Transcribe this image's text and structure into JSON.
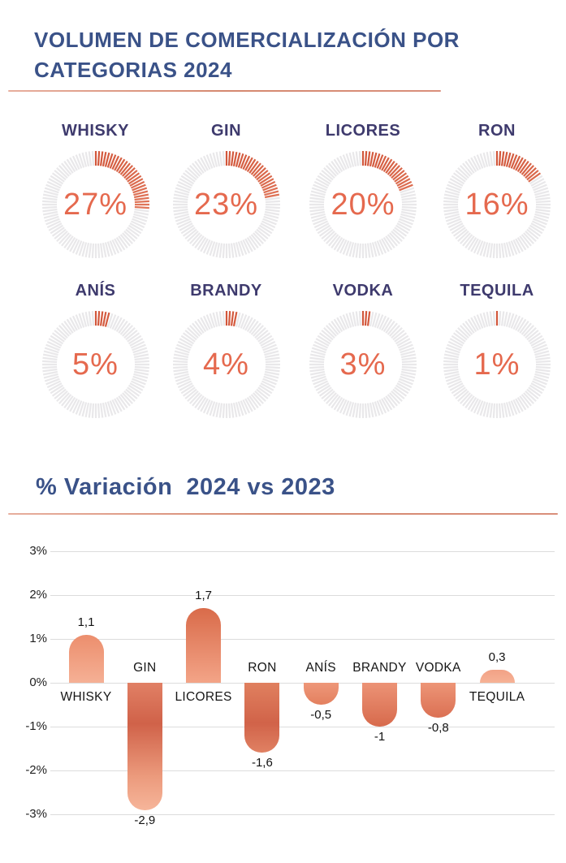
{
  "header": {
    "title": "VOLUMEN DE COMERCIALIZACIÓN POR CATEGORIAS 2024"
  },
  "variation_section": {
    "title": "% Variación  2024 vs 2023"
  },
  "colors": {
    "title_blue": "#3A5288",
    "gauge_label_indigo": "#3E3A6D",
    "gauge_value_coral": "#E5694E",
    "divider_coral": "#D5886F",
    "gauge_tick_empty": "#E9E8EA",
    "gauge_gradient_stops": [
      {
        "angle": 0,
        "color": "#D2573B"
      },
      {
        "angle": 55,
        "color": "#F09B7E"
      },
      {
        "angle": 80,
        "color": "#C84732"
      },
      {
        "angle": 100,
        "color": "#D05A3E"
      }
    ],
    "gridline": "#DCDCDC",
    "bar_gradients": [
      "linear-gradient(0deg,#F5B095 0%,#EC8E6D 100%)",
      "linear-gradient(180deg,#E18065 0%,#D06249 32%,#EC9B7D 74%,#F6B59A 100%)",
      "linear-gradient(0deg,#F3A487 0%,#D96B4A 100%)",
      "linear-gradient(180deg,#E0805F 0%,#D16349 58%,#E08163 100%)",
      "linear-gradient(180deg,#EE9779 0%,#E3805F 100%)",
      "linear-gradient(180deg,#EC9376 0%,#D76A4C 100%)",
      "linear-gradient(180deg,#ED9577 0%,#DB7053 100%)",
      "linear-gradient(0deg,#F6B295 0%,#F2A185 100%)"
    ]
  },
  "chart_data": [
    {
      "type": "pie",
      "subtype": "tick-donut-gauges",
      "title": "VOLUMEN DE COMERCIALIZACIÓN POR CATEGORIAS 2024",
      "unit": "%",
      "ticks_per_ring": 100,
      "gauges": [
        {
          "label": "WHISKY",
          "value": 27,
          "display": "27%"
        },
        {
          "label": "GIN",
          "value": 23,
          "display": "23%"
        },
        {
          "label": "LICORES",
          "value": 20,
          "display": "20%"
        },
        {
          "label": "RON",
          "value": 16,
          "display": "16%"
        },
        {
          "label": "ANÍS",
          "value": 5,
          "display": "5%"
        },
        {
          "label": "BRANDY",
          "value": 4,
          "display": "4%"
        },
        {
          "label": "VODKA",
          "value": 3,
          "display": "3%"
        },
        {
          "label": "TEQUILA",
          "value": 1,
          "display": "1%"
        }
      ]
    },
    {
      "type": "bar",
      "title": "% Variación  2024 vs 2023",
      "categories": [
        "WHISKY",
        "GIN",
        "LICORES",
        "RON",
        "ANÍS",
        "BRANDY",
        "VODKA",
        "TEQUILA"
      ],
      "values": [
        1.1,
        -2.9,
        1.7,
        -1.6,
        -0.5,
        -1,
        -0.8,
        0.3
      ],
      "value_labels": [
        "1,1",
        "-2,9",
        "1,7",
        "-1,6",
        "-0,5",
        "-1",
        "-0,8",
        "0,3"
      ],
      "xlabel": "",
      "ylabel": "",
      "ylim": [
        -3,
        3
      ],
      "grid": true,
      "y_ticks": [
        {
          "label": "3%",
          "v": 3
        },
        {
          "label": "2%",
          "v": 2
        },
        {
          "label": "1%",
          "v": 1
        },
        {
          "label": "0%",
          "v": 0
        },
        {
          "label": "-1%",
          "v": -1
        },
        {
          "label": "-2%",
          "v": -2
        },
        {
          "label": "-3%",
          "v": -3
        }
      ]
    }
  ]
}
